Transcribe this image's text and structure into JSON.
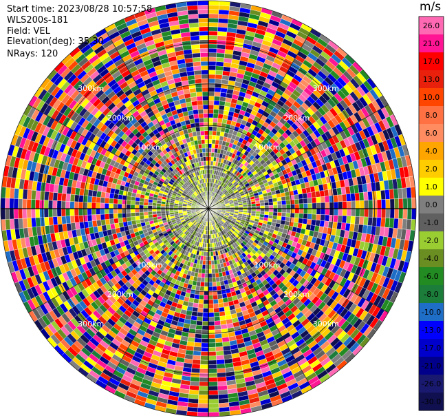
{
  "header": {
    "start_time": "Start time: 2023/08/28 10:57:58",
    "instrument": "WLS200s-181",
    "field": "Field: VEL",
    "elevation": "Elevation(deg): 35.30",
    "nrays": "NRays: 120"
  },
  "colorbar": {
    "unit": "m/s",
    "ticks": [
      "26.0",
      "21.0",
      "17.0",
      "13.0",
      "10.0",
      "8.0",
      "6.0",
      "4.0",
      "2.0",
      "1.0",
      "0.0",
      "-1.0",
      "-2.0",
      "-4.0",
      "-6.0",
      "-8.0",
      "-10.0",
      "-13.0",
      "-17.0",
      "-21.0",
      "-26.0",
      "-30.0"
    ],
    "colors": [
      "#ff69b4",
      "#ff1493",
      "#ff0000",
      "#e8200c",
      "#ff4500",
      "#ff7043",
      "#ff8c60",
      "#ffa500",
      "#ffcc00",
      "#ffff00",
      "#7f7f7f",
      "#606060",
      "#9acd32",
      "#6b8e23",
      "#228b22",
      "#1c7c3a",
      "#1e6ec8",
      "#0000ff",
      "#0000cd",
      "#00008b",
      "#191970",
      "#101050"
    ]
  },
  "chart_data": {
    "type": "heatmap",
    "subtype": "PPI polar scan",
    "rays": 120,
    "range_rings_label": [
      "100km",
      "200km",
      "300km"
    ],
    "ring_labels": [
      "100km",
      "200km",
      "300km"
    ],
    "value_range": [
      -30.0,
      26.0
    ]
  }
}
